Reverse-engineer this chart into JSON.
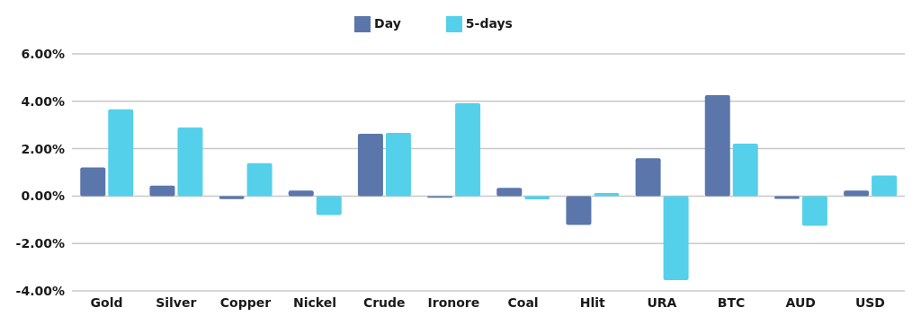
{
  "chart_data": {
    "type": "bar",
    "categories": [
      "Gold",
      "Silver",
      "Copper",
      "Nickel",
      "Crude",
      "Ironore",
      "Coal",
      "Hlit",
      "URA",
      "BTC",
      "AUD",
      "USD"
    ],
    "series": [
      {
        "name": "Day",
        "color": "#5a76ab",
        "values": [
          1.21,
          0.44,
          -0.13,
          0.23,
          2.63,
          -0.07,
          0.35,
          -1.22,
          1.6,
          4.26,
          -0.12,
          0.23
        ]
      },
      {
        "name": "5-days",
        "color": "#54d0ea",
        "values": [
          3.66,
          2.89,
          1.39,
          -0.8,
          2.67,
          3.92,
          -0.14,
          0.13,
          -3.55,
          2.21,
          -1.25,
          0.87
        ]
      }
    ],
    "ylim": [
      -4,
      6
    ],
    "yticks": [
      {
        "value": -4,
        "label": "-4.00%"
      },
      {
        "value": -2,
        "label": "-2.00%"
      },
      {
        "value": 0,
        "label": "0.00%"
      },
      {
        "value": 2,
        "label": "2.00%"
      },
      {
        "value": 4,
        "label": "4.00%"
      },
      {
        "value": 6,
        "label": "6.00%"
      }
    ],
    "grid": "y",
    "legend": "top"
  }
}
